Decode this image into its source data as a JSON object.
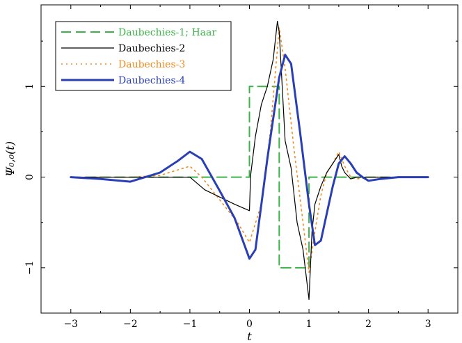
{
  "chart_data": {
    "type": "line",
    "xlabel": "t",
    "ylabel": "Ψ₀,₀(t)",
    "xlim": [
      -3.5,
      3.5
    ],
    "ylim": [
      -1.5,
      1.9
    ],
    "xticks": [
      -3,
      -2,
      -1,
      0,
      1,
      2,
      3
    ],
    "xtick_labels": [
      "−3",
      "−2",
      "−1",
      "0",
      "1",
      "2",
      "3"
    ],
    "yticks": [
      -1,
      0,
      1
    ],
    "ytick_labels": [
      "−1",
      "0",
      "1"
    ],
    "legend_position": "top-left",
    "series": [
      {
        "name": "Daubechies-1; Haar",
        "color": "#3cb34a",
        "dash": "dashed",
        "x": [
          -3,
          0,
          0,
          0.5,
          0.5,
          1,
          1,
          3
        ],
        "y": [
          0,
          0,
          1,
          1,
          -1,
          -1,
          0,
          0
        ]
      },
      {
        "name": "Daubechies-2",
        "color": "#000000",
        "dash": "solid",
        "x": [
          -3,
          -1,
          -0.75,
          -0.5,
          -0.25,
          0,
          0.02,
          0.1,
          0.2,
          0.3,
          0.4,
          0.47,
          0.5,
          0.55,
          0.6,
          0.7,
          0.8,
          0.9,
          1.0,
          1.05,
          1.1,
          1.2,
          1.3,
          1.4,
          1.5,
          1.55,
          1.6,
          1.7,
          1.8,
          2,
          3
        ],
        "y": [
          0,
          0,
          -0.14,
          -0.22,
          -0.3,
          -0.37,
          0.02,
          0.45,
          0.8,
          1.0,
          1.3,
          1.72,
          1.6,
          1.0,
          0.4,
          0.1,
          -0.5,
          -0.8,
          -1.35,
          -0.6,
          -0.3,
          -0.1,
          0.05,
          0.15,
          0.25,
          0.12,
          0.05,
          -0.02,
          0,
          0,
          0
        ]
      },
      {
        "name": "Daubechies-3",
        "color": "#f28a1e",
        "dash": "dotted",
        "x": [
          -3,
          -2,
          -1.5,
          -1.2,
          -1,
          -0.8,
          -0.5,
          -0.2,
          0,
          0.2,
          0.35,
          0.5,
          0.6,
          0.75,
          0.9,
          1.0,
          1.1,
          1.2,
          1.3,
          1.4,
          1.5,
          1.6,
          1.7,
          1.8,
          2,
          2.5,
          3
        ],
        "y": [
          0,
          0,
          0.02,
          0.08,
          0.12,
          0.0,
          -0.25,
          -0.5,
          -0.72,
          -0.3,
          0.5,
          1.65,
          1.2,
          0.3,
          -0.5,
          -1.05,
          -0.6,
          -0.2,
          0.05,
          0.15,
          0.28,
          0.12,
          0.0,
          -0.02,
          0,
          0,
          0
        ]
      },
      {
        "name": "Daubechies-4",
        "color": "#2a3fb5",
        "dash": "solid",
        "x": [
          -3,
          -2.5,
          -2,
          -1.5,
          -1.2,
          -1,
          -0.8,
          -0.5,
          -0.25,
          0,
          0.1,
          0.3,
          0.5,
          0.6,
          0.7,
          0.85,
          1.0,
          1.1,
          1.2,
          1.3,
          1.4,
          1.5,
          1.6,
          1.7,
          1.8,
          1.9,
          2,
          2.2,
          2.5,
          3
        ],
        "y": [
          0,
          -0.02,
          -0.05,
          0.05,
          0.18,
          0.28,
          0.2,
          -0.15,
          -0.45,
          -0.9,
          -0.8,
          0.2,
          1.1,
          1.35,
          1.25,
          0.5,
          -0.3,
          -0.75,
          -0.7,
          -0.4,
          -0.1,
          0.15,
          0.23,
          0.15,
          0.05,
          0.0,
          -0.04,
          -0.02,
          0,
          0
        ]
      }
    ]
  }
}
